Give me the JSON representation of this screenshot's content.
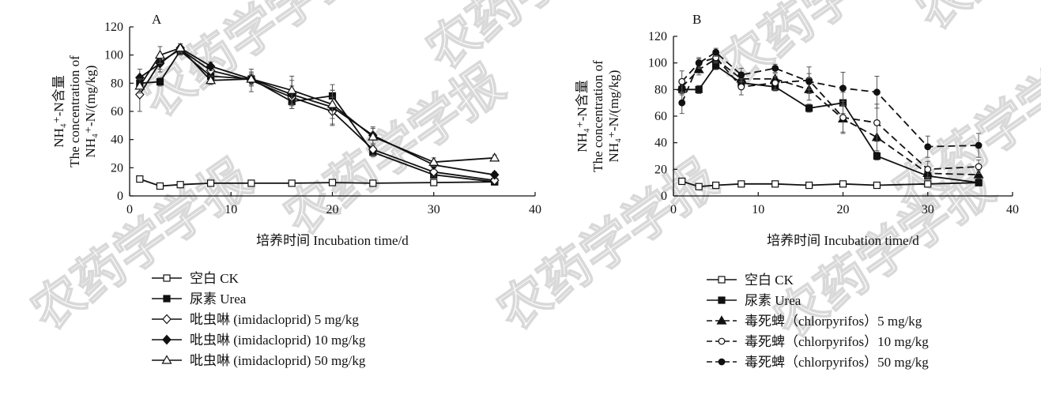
{
  "watermark": {
    "text": "农药学学报"
  },
  "chart_data": [
    {
      "panel": "A",
      "type": "line",
      "xlabel": "培养时间  Incubation time/d",
      "ylabel_lines": [
        "NH₄⁺-N含量",
        "The concentration of",
        "NH₄⁺-N/(mg/kg)"
      ],
      "xlim": [
        0,
        40
      ],
      "ylim": [
        0,
        120
      ],
      "xticks": [
        "0",
        "10",
        "20",
        "30",
        "40"
      ],
      "yticks": [
        "0",
        "20",
        "40",
        "60",
        "80",
        "100",
        "120"
      ],
      "grid": false,
      "legend_position": "below-plot",
      "series": [
        {
          "name": "空白 CK",
          "marker": "square-open",
          "dash": false,
          "points": [
            [
              1,
              12
            ],
            [
              3,
              7
            ],
            [
              5,
              8
            ],
            [
              8,
              9
            ],
            [
              12,
              9
            ],
            [
              16,
              9
            ],
            [
              20,
              9.5
            ],
            [
              24,
              9
            ],
            [
              30,
              9.5
            ],
            [
              36,
              10
            ]
          ],
          "errors": [
            2,
            1,
            1,
            1,
            1,
            1,
            1,
            1,
            1,
            1
          ]
        },
        {
          "name": "尿素 Urea",
          "marker": "square-filled",
          "dash": false,
          "points": [
            [
              1,
              80
            ],
            [
              3,
              81
            ],
            [
              5,
              103
            ],
            [
              8,
              85
            ],
            [
              12,
              83
            ],
            [
              16,
              67
            ],
            [
              20,
              71
            ],
            [
              24,
              31
            ],
            [
              30,
              15
            ],
            [
              36,
              10
            ]
          ],
          "errors": [
            4,
            3,
            3,
            3,
            3,
            3,
            8,
            3,
            2,
            1
          ]
        },
        {
          "name": "吡虫啉 (imidacloprid) 5 mg/kg",
          "marker": "diamond-open",
          "dash": false,
          "points": [
            [
              1,
              72
            ],
            [
              3,
              95
            ],
            [
              5,
              104
            ],
            [
              8,
              89
            ],
            [
              12,
              82
            ],
            [
              16,
              70
            ],
            [
              20,
              60
            ],
            [
              24,
              33
            ],
            [
              30,
              17
            ],
            [
              36,
              11
            ]
          ],
          "errors": [
            12,
            5,
            3,
            4,
            8,
            8,
            10,
            4,
            3,
            2
          ]
        },
        {
          "name": "吡虫啉 (imidacloprid) 10 mg/kg",
          "marker": "diamond-filled",
          "dash": false,
          "points": [
            [
              1,
              84
            ],
            [
              3,
              94
            ],
            [
              5,
              105
            ],
            [
              8,
              92
            ],
            [
              12,
              83
            ],
            [
              16,
              72
            ],
            [
              20,
              63
            ],
            [
              24,
              43
            ],
            [
              30,
              22
            ],
            [
              36,
              15
            ]
          ],
          "errors": [
            6,
            6,
            3,
            3,
            4,
            10,
            12,
            6,
            3,
            2
          ]
        },
        {
          "name": "吡虫啉 (imidacloprid) 50 mg/kg",
          "marker": "triangle-open",
          "dash": false,
          "points": [
            [
              1,
              78
            ],
            [
              3,
              100
            ],
            [
              5,
              105
            ],
            [
              8,
              82
            ],
            [
              12,
              83
            ],
            [
              16,
              75
            ],
            [
              20,
              65
            ],
            [
              24,
              42
            ],
            [
              30,
              24
            ],
            [
              36,
              27
            ]
          ],
          "errors": [
            5,
            6,
            3,
            3,
            5,
            10,
            10,
            6,
            3,
            2
          ]
        }
      ]
    },
    {
      "panel": "B",
      "type": "line",
      "xlabel": "培养时间  Incubation time/d",
      "ylabel_lines": [
        "NH₄⁺-N含量",
        "The concentration of",
        "NH₄⁺-N/(mg/kg)"
      ],
      "xlim": [
        0,
        40
      ],
      "ylim": [
        0,
        120
      ],
      "xticks": [
        "0",
        "10",
        "20",
        "30",
        "40"
      ],
      "yticks": [
        "0",
        "20",
        "40",
        "60",
        "80",
        "100",
        "120"
      ],
      "grid": false,
      "legend_position": "below-plot",
      "series": [
        {
          "name": "空白 CK",
          "marker": "square-open",
          "dash": false,
          "points": [
            [
              1,
              11
            ],
            [
              3,
              7
            ],
            [
              5,
              8
            ],
            [
              8,
              9
            ],
            [
              12,
              9
            ],
            [
              16,
              8
            ],
            [
              20,
              9
            ],
            [
              24,
              8
            ],
            [
              30,
              9
            ],
            [
              36,
              10
            ]
          ],
          "errors": [
            1,
            1,
            1,
            1,
            1,
            1,
            1,
            1,
            1,
            1
          ]
        },
        {
          "name": "尿素 Urea",
          "marker": "square-filled",
          "dash": false,
          "points": [
            [
              1,
              80
            ],
            [
              3,
              80
            ],
            [
              5,
              98
            ],
            [
              8,
              85
            ],
            [
              12,
              82
            ],
            [
              16,
              66
            ],
            [
              20,
              70
            ],
            [
              24,
              30
            ],
            [
              30,
              15
            ],
            [
              36,
              10
            ]
          ],
          "errors": [
            4,
            3,
            3,
            3,
            3,
            3,
            8,
            3,
            2,
            1
          ]
        },
        {
          "name": "毒死蜱（chlorpyrifos）5 mg/kg",
          "marker": "triangle-filled",
          "dash": true,
          "points": [
            [
              1,
              82
            ],
            [
              3,
              95
            ],
            [
              5,
              103
            ],
            [
              8,
              88
            ],
            [
              12,
              88
            ],
            [
              16,
              80
            ],
            [
              20,
              58
            ],
            [
              24,
              44
            ],
            [
              30,
              17
            ],
            [
              36,
              16
            ]
          ],
          "errors": [
            5,
            4,
            3,
            5,
            4,
            8,
            10,
            10,
            4,
            3
          ]
        },
        {
          "name": "毒死蜱（chlorpyrifos）10 mg/kg",
          "marker": "circle-open",
          "dash": true,
          "points": [
            [
              1,
              86
            ],
            [
              3,
              100
            ],
            [
              5,
              104
            ],
            [
              8,
              82
            ],
            [
              12,
              85
            ],
            [
              16,
              87
            ],
            [
              20,
              59
            ],
            [
              24,
              55
            ],
            [
              30,
              20
            ],
            [
              36,
              22
            ]
          ],
          "errors": [
            8,
            4,
            3,
            6,
            5,
            10,
            12,
            14,
            6,
            5
          ]
        },
        {
          "name": "毒死蜱（chlorpyrifos）50 mg/kg",
          "marker": "circle-filled",
          "dash": true,
          "points": [
            [
              1,
              70
            ],
            [
              3,
              100
            ],
            [
              5,
              108
            ],
            [
              8,
              91
            ],
            [
              12,
              96
            ],
            [
              16,
              86
            ],
            [
              20,
              81
            ],
            [
              24,
              78
            ],
            [
              30,
              37
            ],
            [
              36,
              38
            ]
          ],
          "errors": [
            8,
            3,
            3,
            5,
            3,
            6,
            12,
            12,
            8,
            9
          ]
        }
      ]
    }
  ]
}
